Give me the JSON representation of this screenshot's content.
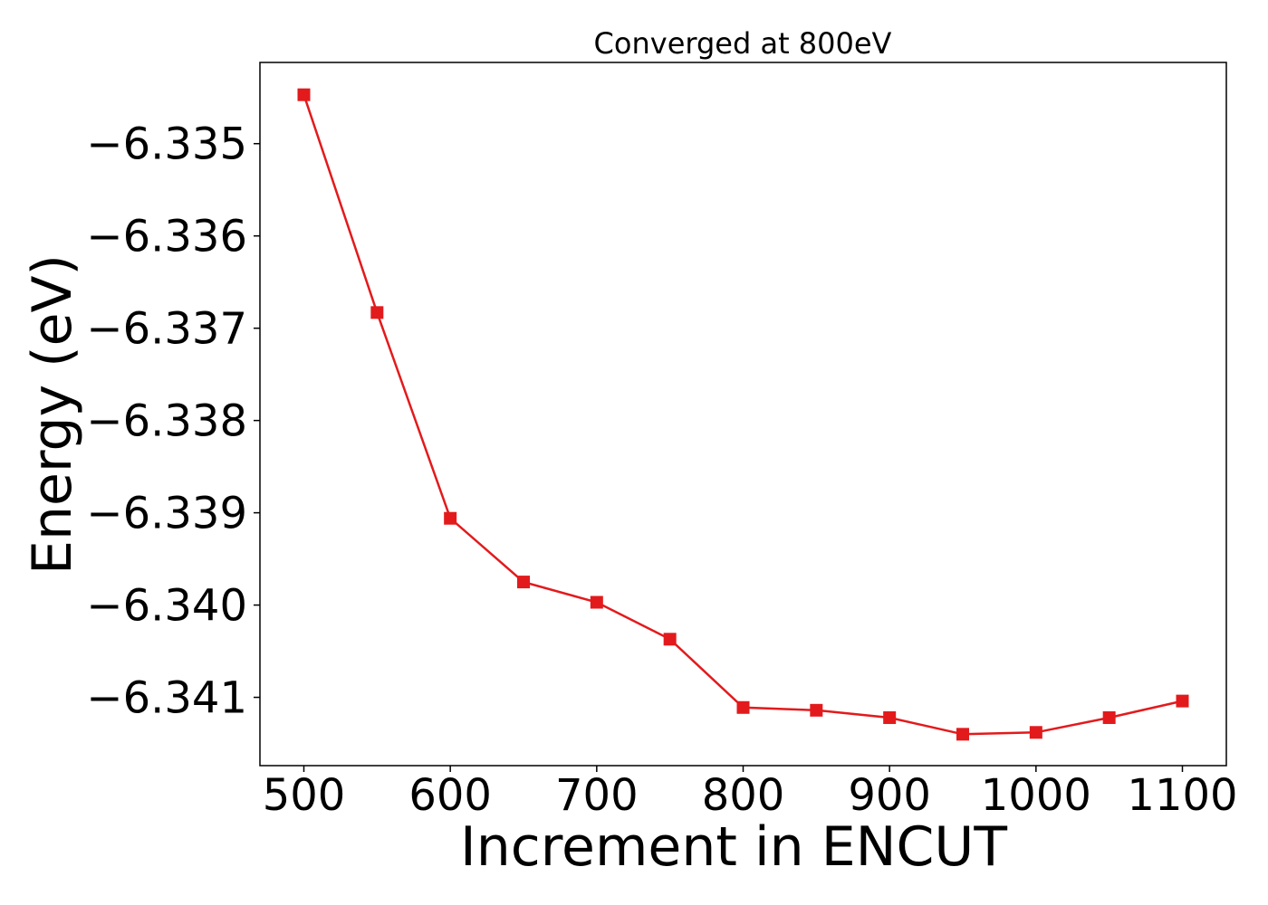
{
  "chart_data": {
    "type": "line",
    "title": "Converged at 800eV",
    "xlabel": "Increment in ENCUT",
    "ylabel": "Energy (eV)",
    "x": [
      500,
      550,
      600,
      650,
      700,
      750,
      800,
      850,
      900,
      950,
      1000,
      1050,
      1100
    ],
    "series": [
      {
        "values": [
          -6.33447,
          -6.33683,
          -6.33906,
          -6.33975,
          -6.33997,
          -6.34037,
          -6.34111,
          -6.34114,
          -6.34122,
          -6.3414,
          -6.34138,
          -6.34122,
          -6.34104
        ],
        "color": "#e31a1c",
        "marker": "square"
      }
    ],
    "xlim": [
      470,
      1130
    ],
    "ylim": [
      -6.34174,
      -6.33412
    ],
    "xticks": [
      500,
      600,
      700,
      800,
      900,
      1000,
      1100
    ],
    "xtick_labels": [
      "500",
      "600",
      "700",
      "800",
      "900",
      "1000",
      "1100"
    ],
    "yticks": [
      -6.335,
      -6.336,
      -6.337,
      -6.338,
      -6.339,
      -6.34,
      -6.341
    ],
    "ytick_labels": [
      "−6.335",
      "−6.336",
      "−6.337",
      "−6.338",
      "−6.339",
      "−6.340",
      "−6.341"
    ],
    "grid": false,
    "legend": "none"
  }
}
